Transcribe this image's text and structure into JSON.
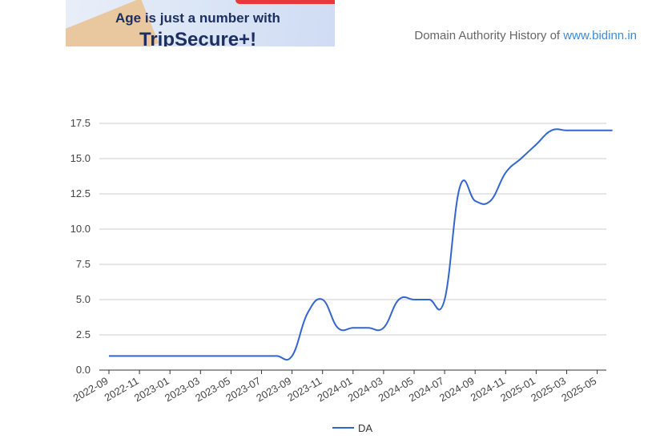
{
  "ad": {
    "headline": "Age is just a number with",
    "brand": "TripSecure+!"
  },
  "header": {
    "title_prefix": "Domain Authority History of",
    "site_link": "www.bidinn.in"
  },
  "colors": {
    "line": "#3366cc",
    "grid": "#cccccc",
    "link": "#3a8bd6",
    "axis": "#333333"
  },
  "chart_data": {
    "type": "line",
    "x_tick_labels": [
      "2022-09",
      "2022-11",
      "2023-01",
      "2023-03",
      "2023-05",
      "2023-07",
      "2023-09",
      "2023-11",
      "2024-01",
      "2024-03",
      "2024-05",
      "2024-07",
      "2024-09",
      "2024-11",
      "2025-01",
      "2025-03",
      "2025-05"
    ],
    "y_ticks": [
      "0.0",
      "2.5",
      "5.0",
      "7.5",
      "10.0",
      "12.5",
      "15.0",
      "17.5"
    ],
    "ylim": [
      0,
      17.5
    ],
    "grid": true,
    "legend_position": "bottom",
    "series": [
      {
        "name": "DA",
        "x": [
          "2022-09",
          "2022-10",
          "2022-11",
          "2022-12",
          "2023-01",
          "2023-02",
          "2023-03",
          "2023-04",
          "2023-05",
          "2023-06",
          "2023-07",
          "2023-08",
          "2023-09",
          "2023-10",
          "2023-11",
          "2023-12",
          "2024-01",
          "2024-02",
          "2024-03",
          "2024-04",
          "2024-05",
          "2024-06",
          "2024-07",
          "2024-08",
          "2024-09",
          "2024-10",
          "2024-11",
          "2024-12",
          "2025-01",
          "2025-02",
          "2025-03",
          "2025-04",
          "2025-05",
          "2025-06"
        ],
        "values": [
          1,
          1,
          1,
          1,
          1,
          1,
          1,
          1,
          1,
          1,
          1,
          1,
          1,
          4,
          5,
          3,
          3,
          3,
          3,
          5,
          5,
          5,
          5,
          13,
          12,
          12,
          14,
          15,
          16,
          17,
          17,
          17,
          17,
          17
        ]
      }
    ]
  }
}
